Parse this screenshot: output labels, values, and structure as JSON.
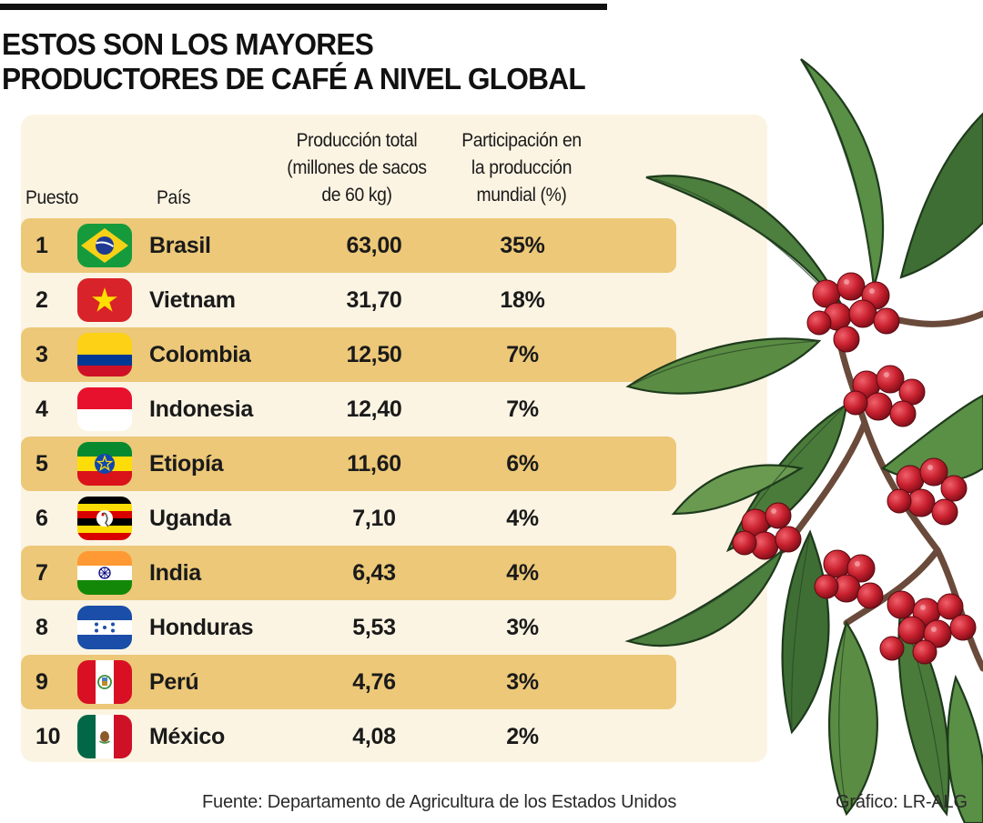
{
  "title_line1": "ESTOS SON LOS MAYORES",
  "title_line2": "PRODUCTORES DE CAFÉ A NIVEL GLOBAL",
  "headers": {
    "rank": "Puesto",
    "country": "País",
    "production": [
      "Producción total",
      "(millones de sacos",
      "de 60 kg)"
    ],
    "share": [
      "Participación en",
      "la producción",
      "mundial (%)"
    ]
  },
  "source": "Fuente: Departamento de Agricultura de los Estados Unidos",
  "credit": "Gráfico: LR-ALG",
  "chart_data": {
    "type": "table",
    "columns": [
      "Puesto",
      "País",
      "Producción total (millones de sacos de 60 kg)",
      "Participación en la producción mundial (%)"
    ],
    "rows": [
      {
        "rank": "1",
        "country": "Brasil",
        "production": "63,00",
        "share": "35%",
        "flag": "brazil-flag-icon"
      },
      {
        "rank": "2",
        "country": "Vietnam",
        "production": "31,70",
        "share": "18%",
        "flag": "vietnam-flag-icon"
      },
      {
        "rank": "3",
        "country": "Colombia",
        "production": "12,50",
        "share": "7%",
        "flag": "colombia-flag-icon"
      },
      {
        "rank": "4",
        "country": "Indonesia",
        "production": "12,40",
        "share": "7%",
        "flag": "indonesia-flag-icon"
      },
      {
        "rank": "5",
        "country": "Etiopía",
        "production": "11,60",
        "share": "6%",
        "flag": "ethiopia-flag-icon"
      },
      {
        "rank": "6",
        "country": "Uganda",
        "production": "7,10",
        "share": "4%",
        "flag": "uganda-flag-icon"
      },
      {
        "rank": "7",
        "country": "India",
        "production": "6,43",
        "share": "4%",
        "flag": "india-flag-icon"
      },
      {
        "rank": "8",
        "country": "Honduras",
        "production": "5,53",
        "share": "3%",
        "flag": "honduras-flag-icon"
      },
      {
        "rank": "9",
        "country": "Perú",
        "production": "4,76",
        "share": "3%",
        "flag": "peru-flag-icon"
      },
      {
        "rank": "10",
        "country": "México",
        "production": "4,08",
        "share": "2%",
        "flag": "mexico-flag-icon"
      }
    ]
  },
  "colors": {
    "card_bg": "#fcf4e3",
    "row_shade": "#ecc878",
    "text": "#1a1a1a"
  },
  "decoration": "coffee-plant-illustration"
}
